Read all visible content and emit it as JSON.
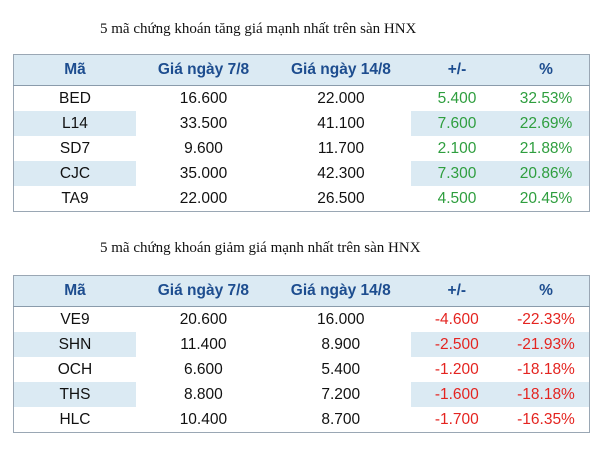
{
  "tables": [
    {
      "title": "5 mã chứng khoán tăng giá mạnh nhất trên sàn HNX",
      "headers": [
        "Mã",
        "Giá ngày 7/8",
        "Giá ngày 14/8",
        "+/-",
        "%"
      ],
      "rows": [
        [
          "BED",
          "16.600",
          "22.000",
          "5.400",
          "32.53%"
        ],
        [
          "L14",
          "33.500",
          "41.100",
          "7.600",
          "22.69%"
        ],
        [
          "SD7",
          "9.600",
          "11.700",
          "2.100",
          "21.88%"
        ],
        [
          "CJC",
          "35.000",
          "42.300",
          "7.300",
          "20.86%"
        ],
        [
          "TA9",
          "22.000",
          "26.500",
          "4.500",
          "20.45%"
        ]
      ]
    },
    {
      "title": "5 mã chứng khoán giảm giá mạnh nhất trên sàn HNX",
      "headers": [
        "Mã",
        "Giá ngày 7/8",
        "Giá ngày 14/8",
        "+/-",
        "%"
      ],
      "rows": [
        [
          "VE9",
          "20.600",
          "16.000",
          "-4.600",
          "-22.33%"
        ],
        [
          "SHN",
          "11.400",
          "8.900",
          "-2.500",
          "-21.93%"
        ],
        [
          "OCH",
          "6.600",
          "5.400",
          "-1.200",
          "-18.18%"
        ],
        [
          "THS",
          "8.800",
          "7.200",
          "-1.600",
          "-18.18%"
        ],
        [
          "HLC",
          "10.400",
          "8.700",
          "-1.700",
          "-16.35%"
        ]
      ]
    }
  ],
  "colors": {
    "header_bg": "#dbeaf3",
    "header_text": "#1d4d8f",
    "up": "#2e9e3e",
    "down": "#e42420"
  }
}
